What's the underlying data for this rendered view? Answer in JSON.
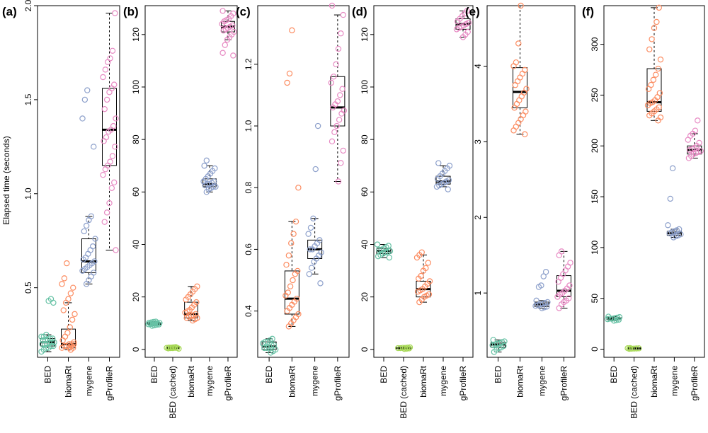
{
  "figure": {
    "ylabel": "Elapsed time (seconds)"
  },
  "colors": {
    "BED": "#66c2a5",
    "BED (cached)": "#a6d854",
    "biomaRt": "#fc8d62",
    "mygene": "#8da0cb",
    "gProfileR": "#e78ac3"
  },
  "chart_data": [
    {
      "type": "box",
      "panel_label": "(a)",
      "categories": [
        "BED",
        "biomaRt",
        "mygene",
        "gProfileR"
      ],
      "ylim": [
        0.13,
        2.0
      ],
      "yticks": [
        0.5,
        1.0,
        1.5,
        2.0
      ],
      "ytick_labels": [
        "0.5",
        "1.0",
        "1.5",
        "2.0"
      ],
      "series": [
        {
          "name": "BED",
          "min": 0.16,
          "q1": 0.19,
          "median": 0.21,
          "q3": 0.23,
          "max": 0.25,
          "points": [
            0.16,
            0.17,
            0.18,
            0.18,
            0.19,
            0.19,
            0.2,
            0.2,
            0.2,
            0.21,
            0.21,
            0.21,
            0.22,
            0.22,
            0.22,
            0.23,
            0.23,
            0.24,
            0.24,
            0.25,
            0.43,
            0.44,
            0.42
          ]
        },
        {
          "name": "biomaRt",
          "min": 0.17,
          "q1": 0.18,
          "median": 0.2,
          "q3": 0.28,
          "max": 0.42,
          "points": [
            0.17,
            0.18,
            0.18,
            0.19,
            0.19,
            0.2,
            0.2,
            0.21,
            0.22,
            0.24,
            0.26,
            0.29,
            0.33,
            0.36,
            0.38,
            0.42,
            0.44,
            0.47,
            0.5,
            0.52,
            0.55,
            0.63,
            0.18,
            0.19,
            0.2
          ]
        },
        {
          "name": "mygene",
          "min": 0.52,
          "q1": 0.58,
          "median": 0.64,
          "q3": 0.76,
          "max": 0.88,
          "points": [
            0.52,
            0.54,
            0.56,
            0.58,
            0.59,
            0.6,
            0.61,
            0.62,
            0.63,
            0.64,
            0.65,
            0.66,
            0.68,
            0.7,
            0.72,
            0.76,
            0.8,
            0.83,
            0.86,
            0.88,
            1.25,
            1.4,
            1.5,
            1.55
          ]
        },
        {
          "name": "gProfileR",
          "min": 0.7,
          "q1": 1.15,
          "median": 1.34,
          "q3": 1.56,
          "max": 1.96,
          "points": [
            0.7,
            0.85,
            0.9,
            0.95,
            1.03,
            1.06,
            1.1,
            1.13,
            1.15,
            1.17,
            1.2,
            1.25,
            1.28,
            1.3,
            1.33,
            1.34,
            1.36,
            1.4,
            1.45,
            1.5,
            1.54,
            1.56,
            1.58,
            1.62,
            1.66,
            1.7,
            1.72,
            1.76,
            1.96
          ]
        }
      ]
    },
    {
      "type": "box",
      "panel_label": "(b)",
      "categories": [
        "BED",
        "BED (cached)",
        "biomaRt",
        "mygene",
        "gProfileR"
      ],
      "ylim": [
        -3,
        131
      ],
      "yticks": [
        0,
        20,
        40,
        60,
        80,
        100,
        120
      ],
      "ytick_labels": [
        "0",
        "20",
        "40",
        "60",
        "80",
        "100",
        "120"
      ],
      "series": [
        {
          "name": "BED",
          "min": 9,
          "q1": 9.4,
          "median": 9.8,
          "q3": 10.2,
          "max": 10.6,
          "points": [
            9,
            9.2,
            9.4,
            9.5,
            9.6,
            9.7,
            9.8,
            9.9,
            10,
            10.1,
            10.2,
            10.3,
            10.5,
            10.6
          ]
        },
        {
          "name": "BED (cached)",
          "min": 0.3,
          "q1": 0.5,
          "median": 0.6,
          "q3": 0.7,
          "max": 0.9,
          "points": [
            0.3,
            0.4,
            0.5,
            0.5,
            0.6,
            0.6,
            0.6,
            0.7,
            0.7,
            0.8,
            0.9
          ]
        },
        {
          "name": "biomaRt",
          "min": 11,
          "q1": 12,
          "median": 13.5,
          "q3": 18,
          "max": 24,
          "points": [
            11,
            11.5,
            12,
            12,
            12.5,
            13,
            13,
            13.5,
            14,
            14.5,
            15,
            16,
            17,
            18,
            19,
            20,
            21,
            22,
            23,
            24
          ]
        },
        {
          "name": "mygene",
          "min": 60,
          "q1": 62,
          "median": 63,
          "q3": 65,
          "max": 70,
          "points": [
            60,
            61,
            61.5,
            62,
            62,
            62.5,
            63,
            63,
            63.5,
            64,
            64,
            65,
            66,
            67,
            68,
            69,
            70,
            72
          ]
        },
        {
          "name": "gProfileR",
          "min": 118,
          "q1": 121,
          "median": 123,
          "q3": 125,
          "max": 129,
          "points": [
            112,
            113,
            116,
            118,
            119,
            120,
            121,
            121.5,
            122,
            122.5,
            123,
            123.5,
            124,
            125,
            125.5,
            126,
            127,
            128,
            129
          ]
        }
      ]
    },
    {
      "type": "box",
      "panel_label": "(c)",
      "categories": [
        "BED",
        "biomaRt",
        "mygene",
        "gProfileR"
      ],
      "ylim": [
        0.25,
        1.39
      ],
      "yticks": [
        0.4,
        0.6,
        0.8,
        1.0,
        1.2
      ],
      "ytick_labels": [
        "0.4",
        "0.6",
        "0.8",
        "1.0",
        "1.2"
      ],
      "series": [
        {
          "name": "BED",
          "min": 0.265,
          "q1": 0.275,
          "median": 0.285,
          "q3": 0.3,
          "max": 0.31,
          "points": [
            0.265,
            0.27,
            0.275,
            0.28,
            0.28,
            0.285,
            0.29,
            0.29,
            0.295,
            0.3,
            0.3,
            0.305,
            0.31
          ]
        },
        {
          "name": "biomaRt",
          "min": 0.35,
          "q1": 0.39,
          "median": 0.44,
          "q3": 0.53,
          "max": 0.69,
          "points": [
            0.35,
            0.36,
            0.37,
            0.38,
            0.39,
            0.4,
            0.41,
            0.42,
            0.43,
            0.44,
            0.45,
            0.46,
            0.48,
            0.5,
            0.52,
            0.53,
            0.55,
            0.58,
            0.62,
            0.65,
            0.69,
            0.8,
            1.14,
            1.17,
            1.31
          ]
        },
        {
          "name": "mygene",
          "min": 0.52,
          "q1": 0.57,
          "median": 0.6,
          "q3": 0.63,
          "max": 0.7,
          "points": [
            0.49,
            0.52,
            0.54,
            0.56,
            0.57,
            0.58,
            0.59,
            0.6,
            0.6,
            0.61,
            0.62,
            0.63,
            0.65,
            0.67,
            0.7,
            0.86,
            1.0
          ]
        },
        {
          "name": "gProfileR",
          "min": 0.82,
          "q1": 1.0,
          "median": 1.06,
          "q3": 1.16,
          "max": 1.36,
          "points": [
            0.82,
            0.88,
            0.92,
            0.95,
            0.98,
            1.0,
            1.02,
            1.04,
            1.05,
            1.06,
            1.07,
            1.08,
            1.1,
            1.12,
            1.14,
            1.16,
            1.2,
            1.25,
            1.3,
            1.36,
            1.39
          ]
        }
      ]
    },
    {
      "type": "box",
      "panel_label": "(d)",
      "categories": [
        "BED",
        "BED (cached)",
        "biomaRt",
        "mygene",
        "gProfileR"
      ],
      "ylim": [
        -3,
        131
      ],
      "yticks": [
        0,
        20,
        40,
        60,
        80,
        100,
        120
      ],
      "ytick_labels": [
        "0",
        "20",
        "40",
        "60",
        "80",
        "100",
        "120"
      ],
      "series": [
        {
          "name": "BED",
          "min": 35,
          "q1": 36.5,
          "median": 37.5,
          "q3": 38.5,
          "max": 40,
          "points": [
            35,
            35.5,
            36,
            36.5,
            37,
            37,
            37.5,
            38,
            38,
            38.5,
            39,
            39.5,
            40
          ]
        },
        {
          "name": "BED (cached)",
          "min": 0.2,
          "q1": 0.4,
          "median": 0.5,
          "q3": 0.6,
          "max": 0.8,
          "points": [
            0.2,
            0.3,
            0.4,
            0.5,
            0.5,
            0.6,
            0.6,
            0.7,
            0.8
          ]
        },
        {
          "name": "biomaRt",
          "min": 18,
          "q1": 20,
          "median": 23,
          "q3": 26,
          "max": 36,
          "points": [
            18,
            19,
            20,
            20.5,
            21,
            22,
            22.5,
            23,
            24,
            25,
            26,
            27,
            28,
            30,
            31,
            33,
            35,
            36,
            37
          ]
        },
        {
          "name": "mygene",
          "min": 62,
          "q1": 63,
          "median": 64,
          "q3": 66,
          "max": 70,
          "points": [
            61,
            62,
            62.5,
            63,
            63.5,
            64,
            64.5,
            65,
            66,
            67,
            68,
            69,
            70,
            71
          ]
        },
        {
          "name": "gProfileR",
          "min": 119,
          "q1": 122,
          "median": 124,
          "q3": 126,
          "max": 129,
          "points": [
            119,
            120,
            121,
            122,
            122.5,
            123,
            123.5,
            124,
            124.5,
            125,
            126,
            127,
            128,
            129
          ]
        }
      ]
    },
    {
      "type": "box",
      "panel_label": "(e)",
      "categories": [
        "BED",
        "biomaRt",
        "mygene",
        "gProfileR"
      ],
      "ylim": [
        0.15,
        4.8
      ],
      "yticks": [
        1,
        2,
        3,
        4
      ],
      "ytick_labels": [
        "1",
        "2",
        "3",
        "4"
      ],
      "series": [
        {
          "name": "BED",
          "min": 0.22,
          "q1": 0.28,
          "median": 0.32,
          "q3": 0.35,
          "max": 0.38,
          "points": [
            0.22,
            0.25,
            0.27,
            0.28,
            0.3,
            0.31,
            0.32,
            0.33,
            0.34,
            0.35,
            0.36,
            0.38
          ]
        },
        {
          "name": "biomaRt",
          "min": 3.1,
          "q1": 3.45,
          "median": 3.66,
          "q3": 3.98,
          "max": 4.8,
          "points": [
            3.1,
            3.15,
            3.2,
            3.25,
            3.3,
            3.35,
            3.4,
            3.45,
            3.5,
            3.55,
            3.6,
            3.65,
            3.7,
            3.75,
            3.8,
            3.85,
            3.9,
            3.95,
            4.0,
            4.05,
            4.3,
            4.8
          ]
        },
        {
          "name": "mygene",
          "min": 0.8,
          "q1": 0.82,
          "median": 0.85,
          "q3": 0.88,
          "max": 0.9,
          "points": [
            0.8,
            0.81,
            0.82,
            0.83,
            0.84,
            0.85,
            0.86,
            0.87,
            0.88,
            0.9,
            1.08,
            1.1,
            1.22,
            1.28
          ]
        },
        {
          "name": "gProfileR",
          "min": 0.8,
          "q1": 0.95,
          "median": 1.03,
          "q3": 1.23,
          "max": 1.55,
          "points": [
            0.8,
            0.85,
            0.88,
            0.9,
            0.93,
            0.95,
            0.98,
            1.0,
            1.03,
            1.06,
            1.1,
            1.15,
            1.2,
            1.25,
            1.3,
            1.35,
            1.4,
            1.5,
            1.55
          ]
        }
      ]
    },
    {
      "type": "box",
      "panel_label": "(f)",
      "categories": [
        "BED",
        "BED (cached)",
        "biomaRt",
        "mygene",
        "gProfileR"
      ],
      "ylim": [
        -8,
        338
      ],
      "yticks": [
        0,
        50,
        100,
        150,
        200,
        250,
        300
      ],
      "ytick_labels": [
        "0",
        "50",
        "100",
        "150",
        "200",
        "250",
        "300"
      ],
      "series": [
        {
          "name": "BED",
          "min": 28,
          "q1": 29,
          "median": 30,
          "q3": 31,
          "max": 32,
          "points": [
            28,
            28.5,
            29,
            29.5,
            30,
            30,
            30.5,
            31,
            31.5,
            32
          ]
        },
        {
          "name": "BED (cached)",
          "min": 0.3,
          "q1": 0.5,
          "median": 0.7,
          "q3": 0.9,
          "max": 1.1,
          "points": [
            0.3,
            0.5,
            0.6,
            0.7,
            0.8,
            0.9,
            1.1
          ]
        },
        {
          "name": "biomaRt",
          "min": 225,
          "q1": 234,
          "median": 243,
          "q3": 276,
          "max": 336,
          "points": [
            225,
            228,
            230,
            232,
            234,
            236,
            238,
            240,
            242,
            243,
            245,
            248,
            252,
            256,
            260,
            265,
            270,
            276,
            285,
            295,
            305,
            316,
            322,
            336
          ]
        },
        {
          "name": "mygene",
          "min": 110,
          "q1": 112,
          "median": 114,
          "q3": 116,
          "max": 118,
          "points": [
            110,
            111,
            112,
            113,
            114,
            115,
            116,
            117,
            118,
            122,
            148,
            178
          ]
        },
        {
          "name": "gProfileR",
          "min": 188,
          "q1": 192,
          "median": 196,
          "q3": 200,
          "max": 212,
          "points": [
            188,
            190,
            192,
            193,
            194,
            195,
            196,
            197,
            198,
            200,
            203,
            206,
            210,
            212,
            215,
            225
          ]
        }
      ]
    }
  ]
}
